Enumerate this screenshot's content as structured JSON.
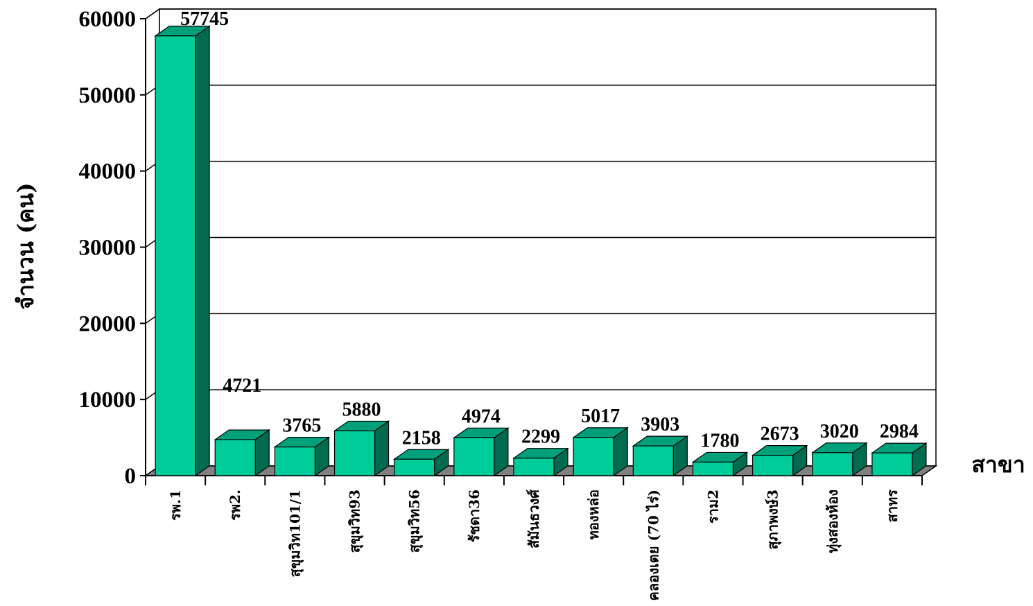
{
  "chart_data": {
    "type": "bar",
    "three_d": true,
    "title": "",
    "xlabel": "สาขา",
    "ylabel": "จำนวน (คน)",
    "ylim": [
      0,
      60000
    ],
    "yticks": [
      0,
      10000,
      20000,
      30000,
      40000,
      50000,
      60000
    ],
    "ytick_labels": [
      "0",
      "10000",
      "20000",
      "30000",
      "40000",
      "50000",
      "60000"
    ],
    "grid": true,
    "legend": "none",
    "categories": [
      "รพ.1",
      "รพ2.",
      "สุขุมวิท101/1",
      "สุขุมวิท93",
      "สุขุมวิท56",
      "รัชดา36",
      "สัมันธวงศ์",
      "ทองหล่อ",
      "คลองเตย (70 ไร่)",
      "ราม2",
      "สุภาพงษ์3",
      "ทุ่งสองห้อง",
      "สาทร"
    ],
    "values": [
      57745,
      4721,
      3765,
      5880,
      2158,
      4974,
      2299,
      5017,
      3903,
      1780,
      2673,
      3020,
      2984
    ],
    "data_labels": [
      "57745",
      "4721",
      "3765",
      "5880",
      "2158",
      "4974",
      "2299",
      "5017",
      "3903",
      "1780",
      "2673",
      "3020",
      "2984"
    ],
    "colors": {
      "bar_front": "#00CC99",
      "bar_top": "#00A07A",
      "bar_side": "#006B4F",
      "floor": "#808080",
      "grid": "#000000"
    }
  }
}
